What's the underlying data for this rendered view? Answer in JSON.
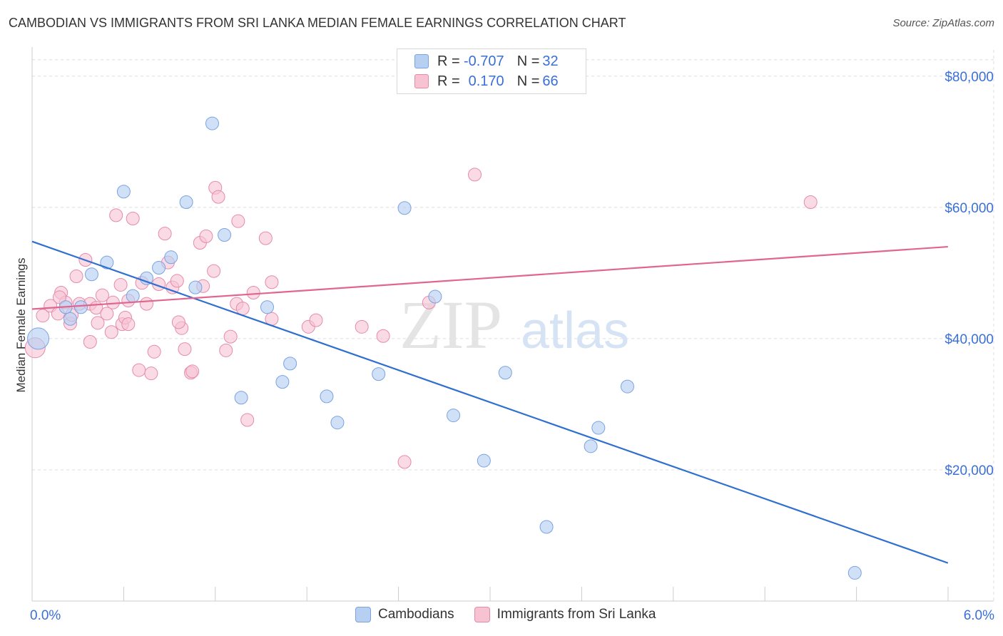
{
  "header": {
    "title": "CAMBODIAN VS IMMIGRANTS FROM SRI LANKA MEDIAN FEMALE EARNINGS CORRELATION CHART",
    "source": "Source: ZipAtlas.com"
  },
  "watermark": {
    "zip": "ZIP",
    "atlas": "atlas"
  },
  "legend": {
    "series1": {
      "r_label": "R =",
      "r_value": "-0.707",
      "n_label": "N =",
      "n_value": "32"
    },
    "series2": {
      "r_label": "R =",
      "r_value": "0.170",
      "n_label": "N =",
      "n_value": "66"
    }
  },
  "bottom_legend": {
    "series1": "Cambodians",
    "series2": "Immigrants from Sri Lanka"
  },
  "colors": {
    "blue_fill": "#b7d0f2",
    "blue_stroke": "#7aa3e0",
    "blue_line": "#2f6fd0",
    "pink_fill": "#f7c3d3",
    "pink_stroke": "#e68aa8",
    "pink_line": "#e0668f",
    "tick_label": "#3a6fd8",
    "grid": "#dddddd"
  },
  "chart_data": {
    "type": "scatter",
    "title": "CAMBODIAN VS IMMIGRANTS FROM SRI LANKA MEDIAN FEMALE EARNINGS CORRELATION CHART",
    "xlabel": "",
    "ylabel": "Median Female Earnings",
    "xlim": [
      0,
      6.3
    ],
    "ylim": [
      0,
      84000
    ],
    "x_tick_labels": [
      "0.0%",
      "6.0%"
    ],
    "y_ticks": [
      20000,
      40000,
      60000,
      80000
    ],
    "y_tick_labels": [
      "$20,000",
      "$40,000",
      "$60,000",
      "$80,000"
    ],
    "grid": true,
    "legend_position": "top-center",
    "series": [
      {
        "name": "Cambodians",
        "color": "#b7d0f2",
        "points": [
          [
            0.04,
            40000
          ],
          [
            0.25,
            43000
          ],
          [
            0.22,
            44800
          ],
          [
            0.32,
            44800
          ],
          [
            0.39,
            49800
          ],
          [
            0.49,
            51600
          ],
          [
            0.6,
            62400
          ],
          [
            0.66,
            46500
          ],
          [
            0.75,
            49200
          ],
          [
            0.83,
            50800
          ],
          [
            0.91,
            52400
          ],
          [
            1.01,
            60800
          ],
          [
            1.07,
            47800
          ],
          [
            1.18,
            72800
          ],
          [
            1.26,
            55800
          ],
          [
            1.37,
            31000
          ],
          [
            1.54,
            44800
          ],
          [
            1.64,
            33400
          ],
          [
            1.69,
            36200
          ],
          [
            1.93,
            31200
          ],
          [
            2.0,
            27200
          ],
          [
            2.27,
            34600
          ],
          [
            2.44,
            59900
          ],
          [
            2.64,
            46400
          ],
          [
            2.76,
            28300
          ],
          [
            2.96,
            21400
          ],
          [
            3.1,
            34800
          ],
          [
            3.37,
            11300
          ],
          [
            3.66,
            23600
          ],
          [
            3.71,
            26400
          ],
          [
            3.9,
            32700
          ],
          [
            5.39,
            4300
          ]
        ],
        "trend": {
          "x": [
            0.0,
            6.0
          ],
          "y": [
            54800,
            5800
          ]
        }
      },
      {
        "name": "Immigrants from Sri Lanka",
        "color": "#f7c3d3",
        "points": [
          [
            0.02,
            38600
          ],
          [
            0.07,
            43500
          ],
          [
            0.12,
            45000
          ],
          [
            0.17,
            43800
          ],
          [
            0.19,
            47000
          ],
          [
            0.22,
            45500
          ],
          [
            0.25,
            42300
          ],
          [
            0.29,
            49500
          ],
          [
            0.31,
            45300
          ],
          [
            0.35,
            52000
          ],
          [
            0.38,
            45300
          ],
          [
            0.38,
            39500
          ],
          [
            0.42,
            44700
          ],
          [
            0.43,
            42400
          ],
          [
            0.46,
            46600
          ],
          [
            0.49,
            43800
          ],
          [
            0.52,
            41000
          ],
          [
            0.53,
            45500
          ],
          [
            0.55,
            58800
          ],
          [
            0.58,
            48200
          ],
          [
            0.59,
            42200
          ],
          [
            0.61,
            43200
          ],
          [
            0.63,
            42200
          ],
          [
            0.66,
            58300
          ],
          [
            0.7,
            35200
          ],
          [
            0.72,
            48500
          ],
          [
            0.75,
            45300
          ],
          [
            0.78,
            34700
          ],
          [
            0.8,
            38000
          ],
          [
            0.83,
            48300
          ],
          [
            0.87,
            56000
          ],
          [
            0.89,
            51600
          ],
          [
            0.92,
            47800
          ],
          [
            0.95,
            48800
          ],
          [
            0.98,
            41600
          ],
          [
            1.0,
            38400
          ],
          [
            1.04,
            34800
          ],
          [
            1.05,
            35000
          ],
          [
            1.1,
            54600
          ],
          [
            1.12,
            48000
          ],
          [
            1.14,
            55600
          ],
          [
            1.19,
            50300
          ],
          [
            1.2,
            63000
          ],
          [
            1.22,
            61600
          ],
          [
            1.27,
            38200
          ],
          [
            1.3,
            40300
          ],
          [
            1.34,
            45300
          ],
          [
            1.35,
            57900
          ],
          [
            1.38,
            44600
          ],
          [
            1.41,
            27600
          ],
          [
            1.45,
            47000
          ],
          [
            1.53,
            55300
          ],
          [
            1.57,
            48600
          ],
          [
            1.57,
            43000
          ],
          [
            1.81,
            41800
          ],
          [
            1.86,
            42800
          ],
          [
            2.16,
            41800
          ],
          [
            2.3,
            40400
          ],
          [
            2.44,
            21200
          ],
          [
            2.6,
            45500
          ],
          [
            2.9,
            65000
          ],
          [
            5.1,
            60800
          ],
          [
            0.18,
            46300
          ],
          [
            0.26,
            43600
          ],
          [
            0.63,
            45800
          ],
          [
            0.96,
            42500
          ]
        ],
        "trend": {
          "x": [
            0.0,
            6.0
          ],
          "y": [
            44500,
            54000
          ]
        }
      }
    ]
  }
}
